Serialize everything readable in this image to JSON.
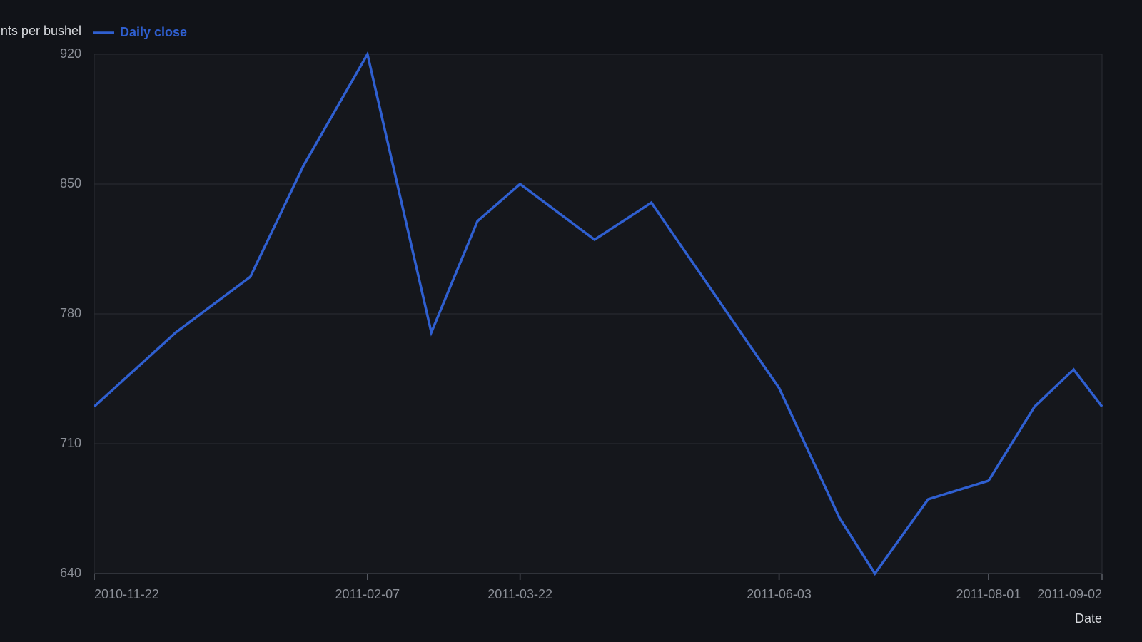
{
  "chart_data": {
    "type": "line",
    "y_label": "Cents per bushel",
    "x_label": "Date",
    "x": [
      "2010-11-22",
      "2010-12-15",
      "2011-01-05",
      "2011-01-20",
      "2011-02-07",
      "2011-02-25",
      "2011-03-10",
      "2011-03-22",
      "2011-04-12",
      "2011-04-28",
      "2011-06-03",
      "2011-06-20",
      "2011-06-30",
      "2011-07-15",
      "2011-08-01",
      "2011-08-14",
      "2011-08-25",
      "2011-09-02"
    ],
    "series": [
      {
        "name": "Daily close",
        "color": "#2f5fd0",
        "values": [
          730,
          770,
          800,
          860,
          920,
          770,
          830,
          850,
          820,
          840,
          740,
          670,
          640,
          680,
          690,
          730,
          750,
          730
        ]
      }
    ],
    "xlim": [
      "2010-11-22",
      "2011-09-02"
    ],
    "xticks": [
      "2010-11-22",
      "2011-02-07",
      "2011-03-22",
      "2011-06-03",
      "2011-08-01",
      "2011-09-02"
    ],
    "ylim": [
      640,
      920
    ],
    "yticks": [
      640,
      710,
      780,
      850,
      920
    ],
    "grid": true
  }
}
